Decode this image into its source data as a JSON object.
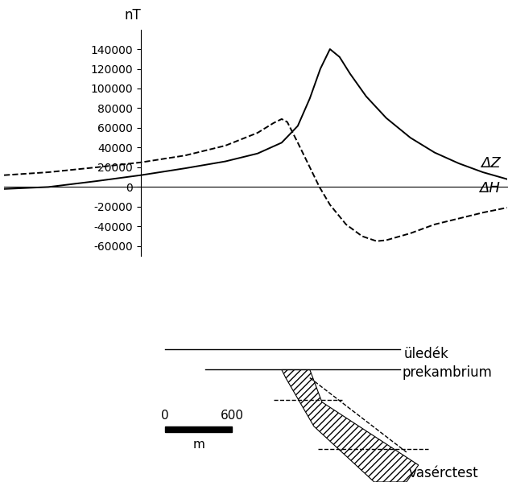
{
  "chart_data": {
    "type": "line",
    "y_label": "nT",
    "series": [
      {
        "name": "ΔZ",
        "color": "#000000",
        "line_style": "solid",
        "x": [
          -1224,
          -828,
          -396,
          0,
          396,
          756,
          1044,
          1260,
          1404,
          1512,
          1606,
          1692,
          1778,
          1872,
          2016,
          2196,
          2412,
          2628,
          2844,
          3060,
          3276
        ],
        "values": [
          -2000,
          0,
          6000,
          12000,
          19000,
          26000,
          34000,
          45000,
          62000,
          90000,
          120000,
          140000,
          132000,
          115000,
          92000,
          70000,
          50000,
          35000,
          24000,
          15000,
          8000
        ]
      },
      {
        "name": "ΔH",
        "color": "#000000",
        "line_style": "dashed",
        "x": [
          -1224,
          -828,
          -396,
          0,
          396,
          756,
          1044,
          1188,
          1260,
          1310,
          1404,
          1512,
          1598,
          1692,
          1836,
          1980,
          2110,
          2196,
          2412,
          2628,
          2844,
          3060,
          3276
        ],
        "values": [
          12000,
          15000,
          20000,
          25000,
          32000,
          42000,
          55000,
          65000,
          69000,
          66000,
          45000,
          20000,
          0,
          -18000,
          -38000,
          -50000,
          -55000,
          -54000,
          -47000,
          -38000,
          -32000,
          -26000,
          -21000
        ]
      }
    ],
    "xlim": [
      -1224,
      3276
    ],
    "ylim": [
      -70000,
      160000
    ],
    "yticks": [
      -60000,
      -40000,
      -20000,
      0,
      20000,
      40000,
      60000,
      80000,
      100000,
      120000,
      140000
    ],
    "tick_labels": "y",
    "grid": false
  },
  "cross_section": {
    "layers": [
      "üledék",
      "prekambrium"
    ],
    "body": "vasérctest",
    "scale_bar": {
      "ticks": [
        0,
        600
      ],
      "unit": "m"
    }
  }
}
